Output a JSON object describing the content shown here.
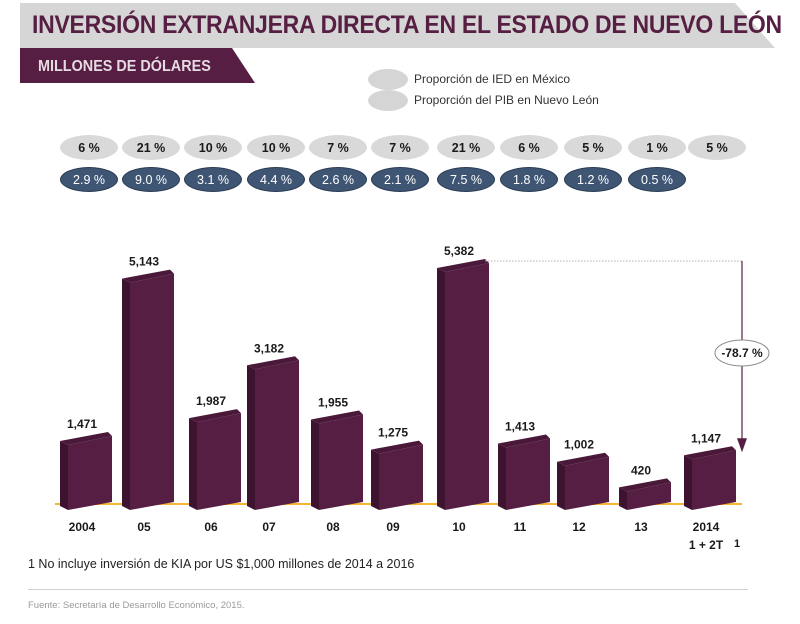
{
  "header": {
    "title": "INVERSIÓN EXTRANJERA DIRECTA EN EL ESTADO DE NUEVO LEÓN",
    "subtitle": "MILLONES DE DÓLARES"
  },
  "legend": [
    {
      "label": "Proporción de IED en México",
      "color": "#d5d5d6"
    },
    {
      "label": "Proporción del PIB en Nuevo León",
      "color": "#d5d5d6"
    }
  ],
  "proportions": {
    "ied_mexico": [
      "6 %",
      "21 %",
      "10 %",
      "10 %",
      "7 %",
      "7 %",
      "21 %",
      "6 %",
      "5 %",
      "1 %",
      "5 %"
    ],
    "pib_nuevo_leon": [
      "2.9 %",
      "9.0 %",
      "3.1 %",
      "4.4 %",
      "2.6 %",
      "2.1 %",
      "7.5 %",
      "1.8 %",
      "1.2 %",
      "0.5 %"
    ]
  },
  "colors": {
    "bar_front": "#561e42",
    "bar_side": "#3e132f",
    "bar_top": "#4a1838",
    "baseline": "#f2b632",
    "title": "#561e42",
    "pill_mx": "#d9d9da",
    "pill_pib": "#3e5574"
  },
  "chart_data": {
    "type": "bar",
    "title": "INVERSIÓN EXTRANJERA DIRECTA EN EL ESTADO DE NUEVO LEÓN",
    "subtitle": "MILLONES DE DÓLARES",
    "xlabel": "",
    "ylabel": "",
    "categories": [
      "2004",
      "05",
      "06",
      "07",
      "08",
      "09",
      "10",
      "11",
      "12",
      "13",
      "2014"
    ],
    "category_sublabel": {
      "index": 10,
      "text": "1 + 2T",
      "footnote_mark": "1"
    },
    "values": [
      1471,
      5143,
      1987,
      3182,
      1955,
      1275,
      5382,
      1413,
      1002,
      420,
      1147
    ],
    "value_labels": [
      "1,471",
      "5,143",
      "1,987",
      "3,182",
      "1,955",
      "1,275",
      "5,382",
      "1,413",
      "1,002",
      "420",
      "1,147"
    ],
    "ylim": [
      0,
      5382
    ],
    "grid": false,
    "annotation": {
      "text": "-78.7 %",
      "from_index": 6,
      "to_index": 10
    }
  },
  "footnote": "1 No incluye inversión de KIA por US $1,000 millones de 2014 a 2016",
  "source": "Fuente: Secretaría de Desarrollo Económico, 2015."
}
